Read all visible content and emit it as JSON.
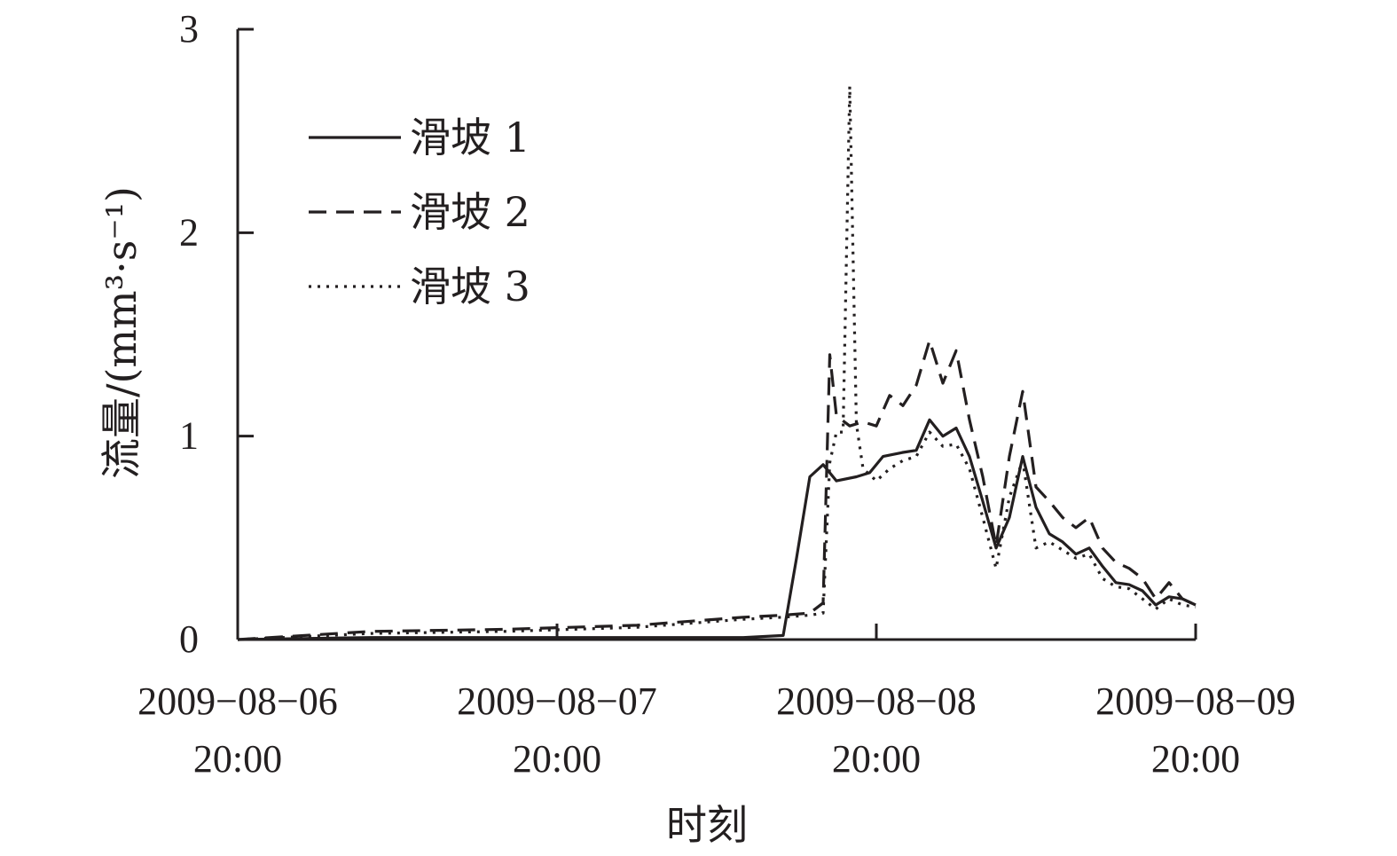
{
  "chart_data": {
    "type": "line",
    "xlabel": "时刻",
    "ylabel": "流量/(mm³·s⁻¹)",
    "ylim": [
      0,
      3
    ],
    "y_ticks": [
      0,
      1,
      2,
      3
    ],
    "x_unit": "hours since 2009-08-06 20:00",
    "xlim": [
      0,
      72
    ],
    "x_ticks": [
      {
        "x": 0,
        "date": "2009−08−06",
        "time": "20:00"
      },
      {
        "x": 24,
        "date": "2009−08−07",
        "time": "20:00"
      },
      {
        "x": 48,
        "date": "2009−08−08",
        "time": "20:00"
      },
      {
        "x": 72,
        "date": "2009−08−09",
        "time": "20:00"
      }
    ],
    "legend_position": "top-left",
    "grid": false,
    "series": [
      {
        "name": "滑坡 1",
        "style": "solid",
        "points": [
          [
            0,
            0
          ],
          [
            10,
            0.01
          ],
          [
            20,
            0.01
          ],
          [
            30,
            0.01
          ],
          [
            38,
            0.01
          ],
          [
            41,
            0.02
          ],
          [
            42,
            0.4
          ],
          [
            43,
            0.8
          ],
          [
            44,
            0.86
          ],
          [
            45,
            0.78
          ],
          [
            46.5,
            0.8
          ],
          [
            47.5,
            0.82
          ],
          [
            48.5,
            0.9
          ],
          [
            50,
            0.92
          ],
          [
            51,
            0.93
          ],
          [
            52,
            1.08
          ],
          [
            53,
            1.0
          ],
          [
            54,
            1.04
          ],
          [
            55,
            0.9
          ],
          [
            56,
            0.68
          ],
          [
            57,
            0.45
          ],
          [
            58,
            0.6
          ],
          [
            59,
            0.9
          ],
          [
            60,
            0.65
          ],
          [
            61,
            0.52
          ],
          [
            62,
            0.48
          ],
          [
            63,
            0.42
          ],
          [
            64,
            0.45
          ],
          [
            65,
            0.36
          ],
          [
            66,
            0.28
          ],
          [
            67,
            0.27
          ],
          [
            68,
            0.24
          ],
          [
            69,
            0.17
          ],
          [
            70,
            0.21
          ],
          [
            71,
            0.2
          ],
          [
            72,
            0.17
          ]
        ]
      },
      {
        "name": "滑坡 2",
        "style": "dashed",
        "points": [
          [
            0,
            0
          ],
          [
            10,
            0.04
          ],
          [
            20,
            0.05
          ],
          [
            30,
            0.07
          ],
          [
            38,
            0.11
          ],
          [
            41,
            0.12
          ],
          [
            43,
            0.13
          ],
          [
            44,
            0.18
          ],
          [
            44.5,
            1.4
          ],
          [
            45,
            1.1
          ],
          [
            46,
            1.05
          ],
          [
            47,
            1.07
          ],
          [
            48,
            1.05
          ],
          [
            49,
            1.2
          ],
          [
            50,
            1.15
          ],
          [
            51,
            1.25
          ],
          [
            52,
            1.47
          ],
          [
            53,
            1.26
          ],
          [
            54,
            1.42
          ],
          [
            55,
            1.08
          ],
          [
            56,
            0.8
          ],
          [
            57,
            0.46
          ],
          [
            58,
            0.9
          ],
          [
            59,
            1.22
          ],
          [
            60,
            0.75
          ],
          [
            61,
            0.68
          ],
          [
            62,
            0.6
          ],
          [
            63,
            0.55
          ],
          [
            64,
            0.6
          ],
          [
            65,
            0.45
          ],
          [
            66,
            0.38
          ],
          [
            67,
            0.35
          ],
          [
            68,
            0.3
          ],
          [
            69,
            0.2
          ],
          [
            70,
            0.28
          ],
          [
            71,
            0.2
          ],
          [
            72,
            0.17
          ]
        ]
      },
      {
        "name": "滑坡 3",
        "style": "dotted",
        "points": [
          [
            0,
            0
          ],
          [
            10,
            0.03
          ],
          [
            20,
            0.04
          ],
          [
            30,
            0.06
          ],
          [
            38,
            0.1
          ],
          [
            41,
            0.11
          ],
          [
            43,
            0.12
          ],
          [
            44,
            0.13
          ],
          [
            44.5,
            0.87
          ],
          [
            45,
            1.02
          ],
          [
            45.5,
            1.02
          ],
          [
            46,
            2.72
          ],
          [
            46.5,
            1.06
          ],
          [
            47,
            0.84
          ],
          [
            48,
            0.78
          ],
          [
            49,
            0.84
          ],
          [
            50,
            0.88
          ],
          [
            51,
            0.9
          ],
          [
            52,
            1.02
          ],
          [
            53,
            0.95
          ],
          [
            54,
            0.96
          ],
          [
            55,
            0.84
          ],
          [
            56,
            0.6
          ],
          [
            57,
            0.35
          ],
          [
            58,
            0.7
          ],
          [
            59,
            0.88
          ],
          [
            60,
            0.45
          ],
          [
            61,
            0.48
          ],
          [
            62,
            0.44
          ],
          [
            63,
            0.4
          ],
          [
            64,
            0.42
          ],
          [
            65,
            0.3
          ],
          [
            66,
            0.26
          ],
          [
            67,
            0.25
          ],
          [
            68,
            0.2
          ],
          [
            69,
            0.15
          ],
          [
            70,
            0.2
          ],
          [
            71,
            0.17
          ],
          [
            72,
            0.16
          ]
        ]
      }
    ]
  }
}
